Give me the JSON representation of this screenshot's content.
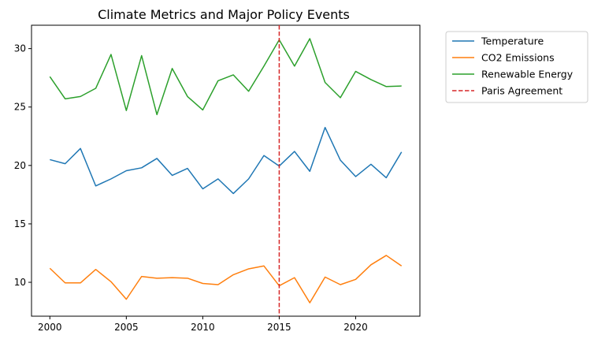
{
  "chart_data": {
    "type": "line",
    "title": "Climate Metrics and Major Policy Events",
    "xlabel": "",
    "ylabel": "",
    "xlim": [
      1998.8,
      2024.2
    ],
    "ylim": [
      7.1,
      32.0
    ],
    "xticks": [
      2000,
      2005,
      2010,
      2015,
      2020
    ],
    "yticks": [
      10,
      15,
      20,
      25,
      30
    ],
    "grid": false,
    "legend_position": "outside-top-right",
    "x": [
      2000,
      2001,
      2002,
      2003,
      2004,
      2005,
      2006,
      2007,
      2008,
      2009,
      2010,
      2011,
      2012,
      2013,
      2014,
      2015,
      2016,
      2017,
      2018,
      2019,
      2020,
      2021,
      2022,
      2023
    ],
    "series": [
      {
        "name": "Temperature",
        "color": "#1f77b4",
        "style": "solid",
        "values": [
          20.5,
          20.15,
          21.45,
          18.25,
          18.85,
          19.55,
          19.8,
          20.6,
          19.15,
          19.75,
          18.0,
          18.85,
          17.6,
          18.85,
          20.85,
          19.95,
          21.2,
          19.5,
          23.25,
          20.45,
          19.05,
          20.1,
          18.95,
          21.15
        ]
      },
      {
        "name": "CO2 Emissions",
        "color": "#ff7f0e",
        "style": "solid",
        "values": [
          11.2,
          9.95,
          9.95,
          11.1,
          10.05,
          8.55,
          10.5,
          10.35,
          10.4,
          10.35,
          9.9,
          9.8,
          10.65,
          11.15,
          11.4,
          9.7,
          10.4,
          8.25,
          10.45,
          9.8,
          10.25,
          11.5,
          12.3,
          11.4
        ]
      },
      {
        "name": "Renewable Energy",
        "color": "#2ca02c",
        "style": "solid",
        "values": [
          27.6,
          25.7,
          25.9,
          26.6,
          29.5,
          24.7,
          29.4,
          24.35,
          28.3,
          25.9,
          24.75,
          27.25,
          27.75,
          26.35,
          28.5,
          30.75,
          28.5,
          30.85,
          27.1,
          25.8,
          28.05,
          27.35,
          26.75,
          26.8
        ]
      }
    ],
    "annotations": [
      {
        "type": "vline",
        "x": 2015,
        "name": "Paris Agreement",
        "color": "#d62728",
        "style": "dashed"
      }
    ],
    "legend": [
      "Temperature",
      "CO2 Emissions",
      "Renewable Energy",
      "Paris Agreement"
    ]
  }
}
